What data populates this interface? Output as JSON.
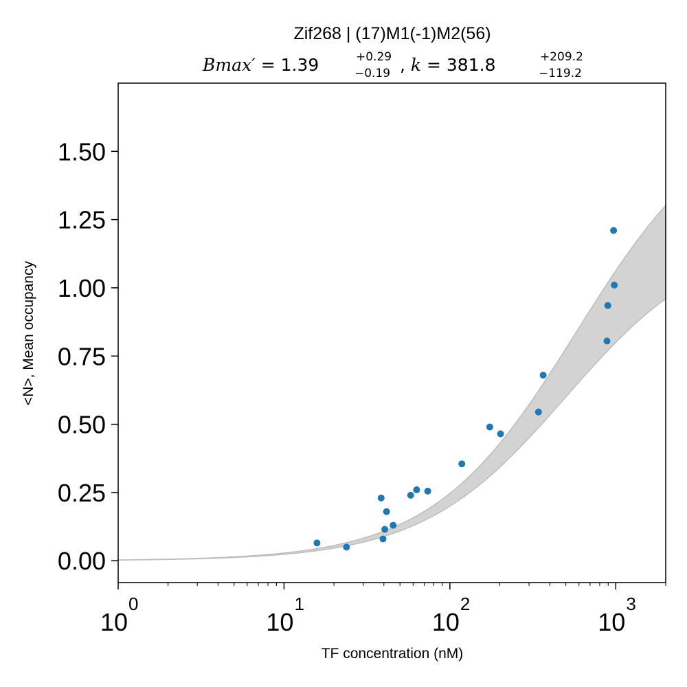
{
  "chart_data": {
    "type": "scatter",
    "title": "Zif268 | (17)M1(-1)M2(56)",
    "subtitle": {
      "bmax_label": "Bmax′ = ",
      "bmax": "1.39",
      "bmax_plus": "+0.29",
      "bmax_minus": "−0.19",
      "sep": ", ",
      "k_label": "k = ",
      "k": "381.8",
      "k_plus": "+209.2",
      "k_minus": "−119.2"
    },
    "xlabel": "TF concentration (nM)",
    "ylabel": "<N>, Mean occupancy",
    "x_scale": "log",
    "xlim": [
      1,
      2000
    ],
    "ylim": [
      -0.08,
      1.75
    ],
    "x_ticks": [
      {
        "value": 1,
        "base": "10",
        "exp": "0"
      },
      {
        "value": 10,
        "base": "10",
        "exp": "1"
      },
      {
        "value": 100,
        "base": "10",
        "exp": "2"
      },
      {
        "value": 1000,
        "base": "10",
        "exp": "3"
      }
    ],
    "y_ticks": [
      {
        "value": 0,
        "label": "0.00"
      },
      {
        "value": 0.25,
        "label": "0.25"
      },
      {
        "value": 0.5,
        "label": "0.50"
      },
      {
        "value": 0.75,
        "label": "0.75"
      },
      {
        "value": 1.0,
        "label": "1.00"
      },
      {
        "value": 1.25,
        "label": "1.25"
      },
      {
        "value": 1.5,
        "label": "1.50"
      }
    ],
    "grid": false,
    "legend": "none",
    "series": [
      {
        "points": [
          [
            15.8,
            0.065
          ],
          [
            23.8,
            0.05
          ],
          [
            38.5,
            0.23
          ],
          [
            39.5,
            0.08
          ],
          [
            40.5,
            0.115
          ],
          [
            41.5,
            0.18
          ],
          [
            45.5,
            0.13
          ],
          [
            58.0,
            0.24
          ],
          [
            63.0,
            0.26
          ],
          [
            73.5,
            0.255
          ],
          [
            118.0,
            0.355
          ],
          [
            174.0,
            0.49
          ],
          [
            202.0,
            0.465
          ],
          [
            342.0,
            0.545
          ],
          [
            365.0,
            0.68
          ],
          [
            885.0,
            0.805
          ],
          [
            895.0,
            0.935
          ],
          [
            970.0,
            1.21
          ],
          [
            980.0,
            1.01
          ]
        ],
        "color": "#1f77b4"
      }
    ],
    "confidence_band": {
      "description": "shaded fit band between lower and upper binding curves",
      "lower": {
        "bmax": 1.2,
        "k": 500
      },
      "upper": {
        "bmax": 1.68,
        "k": 581
      },
      "color": "#d3d3d3",
      "edge_color": "#bdbdbd"
    }
  }
}
